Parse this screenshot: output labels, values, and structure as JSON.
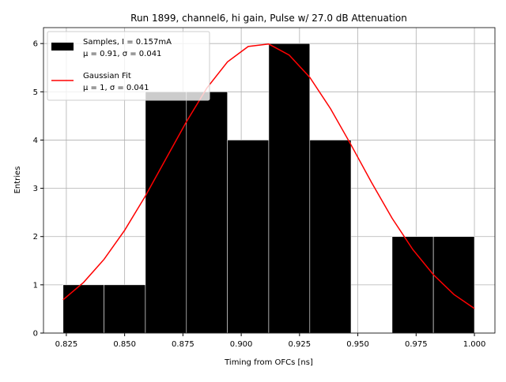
{
  "chart_data": {
    "type": "histogram",
    "title": "Run 1899, channel6, hi gain, Pulse w/ 27.0 dB Attenuation",
    "x_label": "Timing from OFCs [ns]",
    "y_label": "Entries",
    "xlim": [
      0.8152,
      1.0088
    ],
    "ylim": [
      0,
      6.33
    ],
    "xticks": [
      {
        "value": 0.825,
        "label": "0.825"
      },
      {
        "value": 0.85,
        "label": "0.850"
      },
      {
        "value": 0.875,
        "label": "0.875"
      },
      {
        "value": 0.9,
        "label": "0.900"
      },
      {
        "value": 0.925,
        "label": "0.925"
      },
      {
        "value": 0.95,
        "label": "0.950"
      },
      {
        "value": 0.975,
        "label": "0.975"
      },
      {
        "value": 1.0,
        "label": "1.000"
      }
    ],
    "yticks": [
      0,
      1,
      2,
      3,
      4,
      5,
      6
    ],
    "grid": true,
    "legend": "upper left",
    "series": [
      {
        "name": "Samples, I = 0.157mA\nμ = 0.91, σ = 0.041",
        "color": "#000000",
        "bins": [
          0.8236,
          0.8412,
          0.8589,
          0.8765,
          0.8941,
          0.9118,
          0.9294,
          0.9471,
          0.9647,
          0.9824,
          1.0
        ],
        "values": [
          1,
          1,
          5,
          5,
          4,
          6,
          4,
          0,
          2,
          2
        ]
      },
      {
        "name": "Gaussian Fit\nμ = 1, σ = 0.041",
        "color": "#ff0000",
        "type": "line",
        "x": [
          0.8236,
          0.8324,
          0.8412,
          0.85,
          0.8589,
          0.8677,
          0.8765,
          0.8853,
          0.8941,
          0.903,
          0.9118,
          0.9206,
          0.9294,
          0.9383,
          0.9471,
          0.9559,
          0.9647,
          0.9736,
          0.9824,
          0.9912,
          1.0
        ],
        "values": [
          0.69,
          1.05,
          1.53,
          2.13,
          2.84,
          3.61,
          4.38,
          5.08,
          5.62,
          5.94,
          5.99,
          5.76,
          5.3,
          4.65,
          3.9,
          3.12,
          2.38,
          1.73,
          1.21,
          0.8,
          0.51
        ]
      }
    ]
  }
}
